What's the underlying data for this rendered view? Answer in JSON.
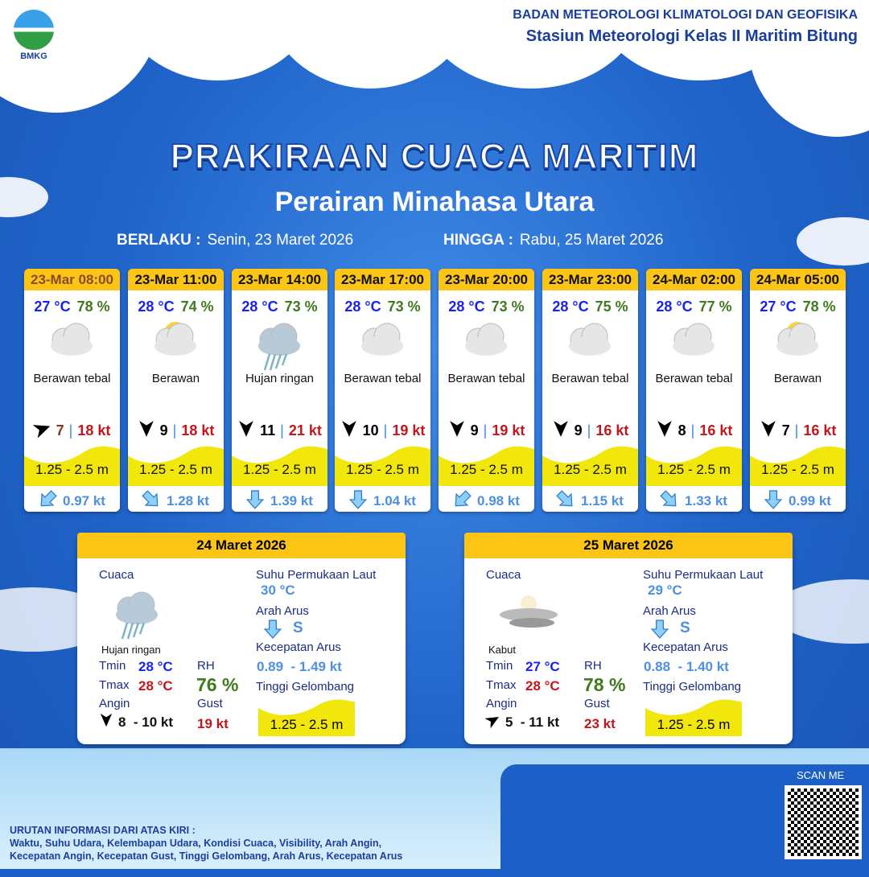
{
  "header": {
    "org": "BADAN METEOROLOGI KLIMATOLOGI DAN GEOFISIKA",
    "station": "Stasiun Meteorologi Kelas II Maritim Bitung",
    "logo_text": "BMKG"
  },
  "title": "PRAKIRAAN CUACA MARITIM",
  "subtitle": "Perairan Minahasa Utara",
  "validity": {
    "from_label": "BERLAKU :",
    "from": "Senin, 23 Maret 2026",
    "to_label": "HINGGA :",
    "to": "Rabu, 25 Maret 2026"
  },
  "colors": {
    "accent": "#fcc515",
    "background": "#1c5fc6",
    "wave": "#f2e70c"
  },
  "forecasts": [
    {
      "time": "23-Mar 08:00",
      "temp": "27 °C",
      "rh": "78 %",
      "icon": "cloudy-icon",
      "weather": "Berawan tebal",
      "wind_dir_deg": 70,
      "wind": "7",
      "gust": "18 kt",
      "wave": "1.25 - 2.5 m",
      "current_dir_deg": 225,
      "current": "0.97 kt"
    },
    {
      "time": "23-Mar 11:00",
      "temp": "28 °C",
      "rh": "74 %",
      "icon": "partly-cloudy-icon",
      "weather": "Berawan",
      "wind_dir_deg": 180,
      "wind": "9",
      "gust": "18 kt",
      "wave": "1.25 - 2.5 m",
      "current_dir_deg": 135,
      "current": "1.28 kt"
    },
    {
      "time": "23-Mar 14:00",
      "temp": "28 °C",
      "rh": "73 %",
      "icon": "light-rain-icon",
      "weather": "Hujan ringan",
      "wind_dir_deg": 180,
      "wind": "11",
      "gust": "21 kt",
      "wave": "1.25 - 2.5 m",
      "current_dir_deg": 180,
      "current": "1.39 kt"
    },
    {
      "time": "23-Mar 17:00",
      "temp": "28 °C",
      "rh": "73 %",
      "icon": "cloudy-icon",
      "weather": "Berawan tebal",
      "wind_dir_deg": 180,
      "wind": "10",
      "gust": "19 kt",
      "wave": "1.25 - 2.5 m",
      "current_dir_deg": 180,
      "current": "1.04 kt"
    },
    {
      "time": "23-Mar 20:00",
      "temp": "28 °C",
      "rh": "73 %",
      "icon": "cloudy-icon",
      "weather": "Berawan tebal",
      "wind_dir_deg": 180,
      "wind": "9",
      "gust": "19 kt",
      "wave": "1.25 - 2.5 m",
      "current_dir_deg": 225,
      "current": "0.98 kt"
    },
    {
      "time": "23-Mar 23:00",
      "temp": "28 °C",
      "rh": "75 %",
      "icon": "cloudy-icon",
      "weather": "Berawan tebal",
      "wind_dir_deg": 180,
      "wind": "9",
      "gust": "16 kt",
      "wave": "1.25 - 2.5 m",
      "current_dir_deg": 135,
      "current": "1.15 kt"
    },
    {
      "time": "24-Mar 02:00",
      "temp": "28 °C",
      "rh": "77 %",
      "icon": "cloudy-icon",
      "weather": "Berawan tebal",
      "wind_dir_deg": 180,
      "wind": "8",
      "gust": "16 kt",
      "wave": "1.25 - 2.5 m",
      "current_dir_deg": 135,
      "current": "1.33 kt"
    },
    {
      "time": "24-Mar 05:00",
      "temp": "27 °C",
      "rh": "78 %",
      "icon": "partly-cloudy-icon",
      "weather": "Berawan",
      "wind_dir_deg": 180,
      "wind": "7",
      "gust": "16 kt",
      "wave": "1.25 - 2.5 m",
      "current_dir_deg": 180,
      "current": "0.99 kt"
    }
  ],
  "labels": {
    "weather": "Cuaca",
    "tmin": "Tmin",
    "tmax": "Tmax",
    "wind": "Angin",
    "rh": "RH",
    "gust": "Gust",
    "sst": "Suhu Permukaan Laut",
    "current_dir": "Arah Arus",
    "current_speed": "Kecepatan Arus",
    "wave": "Tinggi Gelombang"
  },
  "daily": [
    {
      "date": "24 Maret 2026",
      "icon": "light-rain-icon",
      "weather": "Hujan ringan",
      "tmin": "28 °C",
      "tmax": "28 °C",
      "rh": "76 %",
      "wind_dir_deg": 180,
      "wind": "8  - 10 kt",
      "gust": "19 kt",
      "sst": "30 °C",
      "current_dir_deg": 180,
      "current_dir": "S",
      "current_speed": "0.89  - 1.49 kt",
      "wave": "1.25 - 2.5 m"
    },
    {
      "date": "25 Maret 2026",
      "icon": "fog-icon",
      "weather": "Kabut",
      "tmin": "27 °C",
      "tmax": "28 °C",
      "rh": "78 %",
      "wind_dir_deg": 60,
      "wind": "5  - 11 kt",
      "gust": "23 kt",
      "sst": "29 °C",
      "current_dir_deg": 180,
      "current_dir": "S",
      "current_speed": "0.88  - 1.40 kt",
      "wave": "1.25 - 2.5 m"
    }
  ],
  "qr": {
    "label": "SCAN ME"
  },
  "footer": {
    "title": "URUTAN INFORMASI DARI ATAS KIRI :",
    "line1": "Waktu, Suhu Udara, Kelembapan Udara, Kondisi Cuaca, Visibility, Arah Angin,",
    "line2": "Kecepatan Angin, Kecepatan Gust, Tinggi Gelombang, Arah Arus, Kecepatan Arus"
  }
}
